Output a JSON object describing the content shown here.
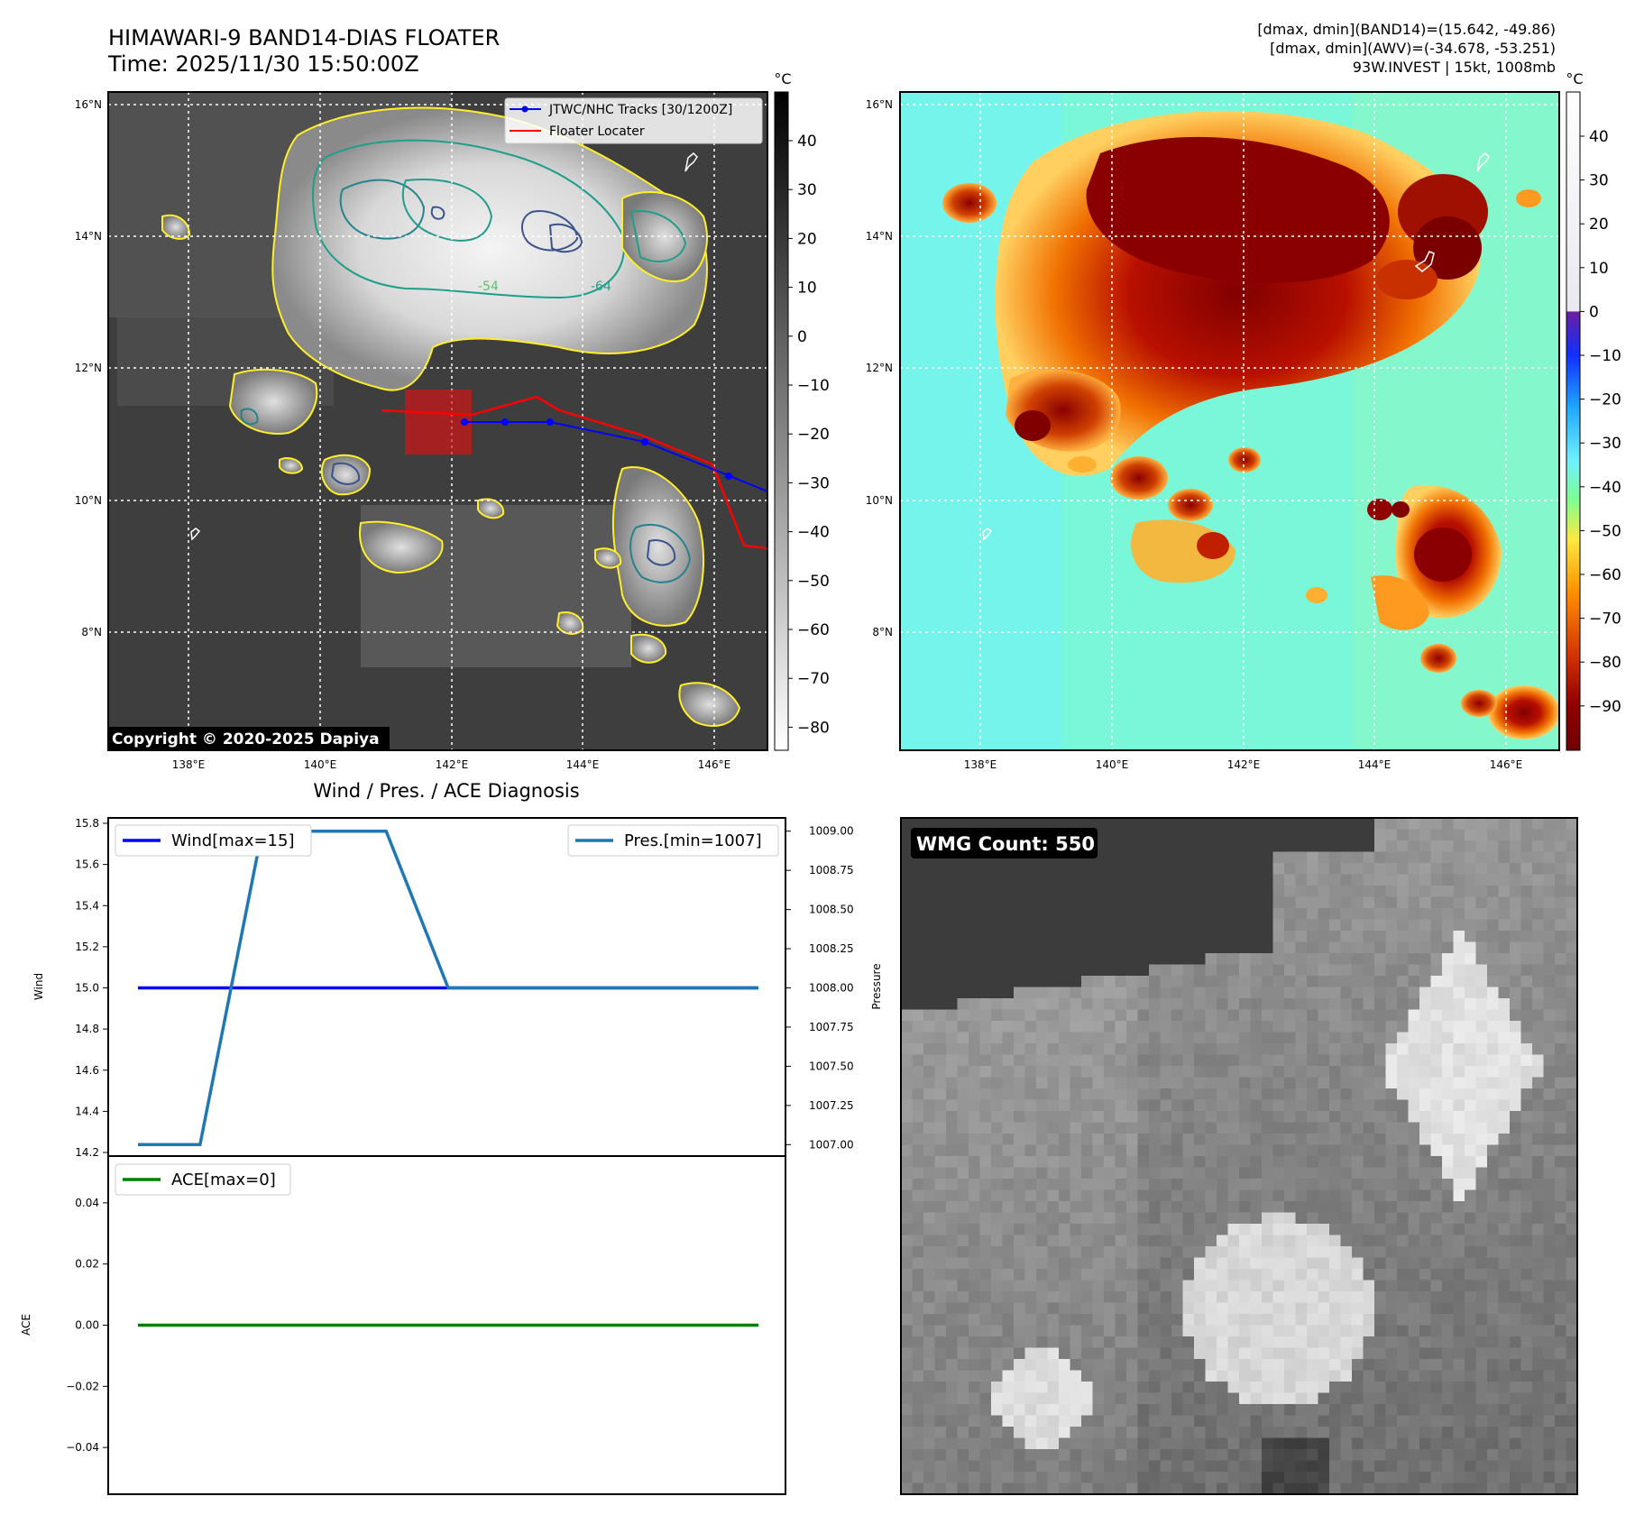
{
  "header": {
    "title_line1": "HIMAWARI-9 BAND14-DIAS FLOATER",
    "title_line2": "Time: 2025/11/30 15:50:00Z",
    "info_line1": "[dmax, dmin](BAND14)=(15.642, -49.86)",
    "info_line2": "[dmax, dmin](AWV)=(-34.678, -53.251)",
    "info_line3": "93W.INVEST | 15kt, 1008mb"
  },
  "map_left": {
    "lat_labels": [
      "16°N",
      "14°N",
      "12°N",
      "10°N",
      "8°N"
    ],
    "lon_labels": [
      "138°E",
      "140°E",
      "142°E",
      "144°E",
      "146°E"
    ],
    "legend_track": "JTWC/NHC Tracks [30/1200Z]",
    "legend_floater": "Floater Locater",
    "copyright": "Copyright © 2020-2025 Dapiya",
    "colorbar_unit": "°C",
    "colorbar_ticks": [
      "40",
      "30",
      "20",
      "10",
      "0",
      "−10",
      "−20",
      "−30",
      "−40",
      "−50",
      "−60",
      "−70",
      "−80"
    ],
    "contour_labels": [
      "-54",
      "-64"
    ],
    "track_color": "#0000ff",
    "floater_color": "#ff0000"
  },
  "map_right": {
    "lat_labels": [
      "16°N",
      "14°N",
      "12°N",
      "10°N",
      "8°N"
    ],
    "lon_labels": [
      "138°E",
      "140°E",
      "142°E",
      "144°E",
      "146°E"
    ],
    "colorbar_unit": "°C",
    "colorbar_ticks": [
      "40",
      "30",
      "20",
      "10",
      "0",
      "−10",
      "−20",
      "−30",
      "−40",
      "−50",
      "−60",
      "−70",
      "−80",
      "−90"
    ]
  },
  "diag": {
    "title": "Wind / Pres. / ACE Diagnosis",
    "wind_ylabel": "Wind",
    "pres_ylabel": "Pressure",
    "ace_ylabel": "ACE",
    "wind_legend": "Wind[max=15]",
    "pres_legend": "Pres.[min=1007]",
    "ace_legend": "ACE[max=0]",
    "wind_ticks": [
      "15.8",
      "15.6",
      "15.4",
      "15.2",
      "15.0",
      "14.8",
      "14.6",
      "14.4",
      "14.2"
    ],
    "pres_ticks": [
      "1009.00",
      "1008.75",
      "1008.50",
      "1008.25",
      "1008.00",
      "1007.75",
      "1007.50",
      "1007.25",
      "1007.00"
    ],
    "ace_ticks": [
      "0.04",
      "0.02",
      "0.00",
      "−0.02",
      "−0.04"
    ]
  },
  "wmg": {
    "label": "WMG Count: 550"
  },
  "chart_data": [
    {
      "type": "line",
      "name": "wind_pressure",
      "x": [
        0,
        1,
        2,
        3,
        4,
        5,
        6,
        7,
        8,
        9,
        10
      ],
      "series": [
        {
          "name": "Wind[max=15]",
          "axis": "left",
          "color": "#0000ff",
          "values": [
            15,
            15,
            15,
            15,
            15,
            15,
            15,
            15,
            15,
            15,
            15
          ]
        },
        {
          "name": "Pres.[min=1007]",
          "axis": "right",
          "color": "#1f77b4",
          "values": [
            1007,
            1007,
            1009,
            1009,
            1009,
            1008,
            1008,
            1008,
            1008,
            1008,
            1008
          ]
        }
      ],
      "ylim_left": [
        14.2,
        15.8
      ],
      "ylim_right": [
        1006.95,
        1009.05
      ]
    },
    {
      "type": "line",
      "name": "ace",
      "x": [
        0,
        1,
        2,
        3,
        4,
        5,
        6,
        7,
        8,
        9,
        10
      ],
      "series": [
        {
          "name": "ACE[max=0]",
          "color": "#008000",
          "values": [
            0,
            0,
            0,
            0,
            0,
            0,
            0,
            0,
            0,
            0,
            0
          ]
        }
      ],
      "ylim": [
        -0.055,
        0.055
      ]
    },
    {
      "type": "line",
      "name": "jtwc_track",
      "x": [
        146.8,
        146.2,
        144.9,
        143.5,
        142.8,
        142.2
      ],
      "series": [
        {
          "name": "JTWC/NHC Tracks [30/1200Z]",
          "values": [
            10.15,
            10.4,
            10.9,
            11.2,
            11.2,
            11.2
          ]
        }
      ]
    }
  ]
}
